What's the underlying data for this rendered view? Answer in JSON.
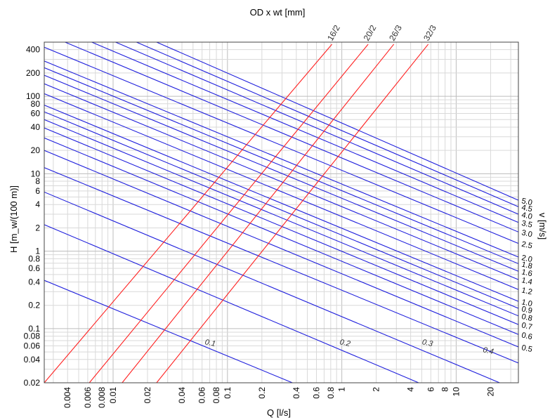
{
  "chart_data": {
    "type": "line",
    "title": "OD x wt [mm]",
    "xlabel": "Q [l/s]",
    "ylabel": "H [m_w/(100 m)]",
    "y2label": "v [m/s]",
    "xscale": "log",
    "yscale": "log",
    "xlim": [
      0.0025,
      35
    ],
    "ylim": [
      0.02,
      500
    ],
    "grid": true,
    "x_ticks": [
      {
        "v": 0.004,
        "t": "0.004"
      },
      {
        "v": 0.006,
        "t": "0.006"
      },
      {
        "v": 0.008,
        "t": "0.008"
      },
      {
        "v": 0.01,
        "t": "0.01"
      },
      {
        "v": 0.02,
        "t": "0.02"
      },
      {
        "v": 0.04,
        "t": "0.04"
      },
      {
        "v": 0.06,
        "t": "0.06"
      },
      {
        "v": 0.08,
        "t": "0.08"
      },
      {
        "v": 0.1,
        "t": "0.1"
      },
      {
        "v": 0.2,
        "t": "0.2"
      },
      {
        "v": 0.4,
        "t": "0.4"
      },
      {
        "v": 0.6,
        "t": "0.6"
      },
      {
        "v": 0.8,
        "t": "0.8"
      },
      {
        "v": 1,
        "t": "1"
      },
      {
        "v": 2,
        "t": "2"
      },
      {
        "v": 4,
        "t": "4"
      },
      {
        "v": 6,
        "t": "6"
      },
      {
        "v": 8,
        "t": "8"
      },
      {
        "v": 10,
        "t": "10"
      },
      {
        "v": 20,
        "t": "20"
      }
    ],
    "y_ticks": [
      {
        "v": 0.02,
        "t": "0.02"
      },
      {
        "v": 0.04,
        "t": "0.04"
      },
      {
        "v": 0.06,
        "t": "0.06"
      },
      {
        "v": 0.08,
        "t": "0.08"
      },
      {
        "v": 0.1,
        "t": "0.1"
      },
      {
        "v": 0.2,
        "t": "0.2"
      },
      {
        "v": 0.4,
        "t": "0.4"
      },
      {
        "v": 0.6,
        "t": "0.6"
      },
      {
        "v": 0.8,
        "t": "0.8"
      },
      {
        "v": 1,
        "t": "1"
      },
      {
        "v": 2,
        "t": "2"
      },
      {
        "v": 4,
        "t": "4"
      },
      {
        "v": 6,
        "t": "6"
      },
      {
        "v": 8,
        "t": "8"
      },
      {
        "v": 10,
        "t": "10"
      },
      {
        "v": 20,
        "t": "20"
      },
      {
        "v": 40,
        "t": "40"
      },
      {
        "v": 60,
        "t": "60"
      },
      {
        "v": 80,
        "t": "80"
      },
      {
        "v": 100,
        "t": "100"
      },
      {
        "v": 200,
        "t": "200"
      },
      {
        "v": 400,
        "t": "400"
      }
    ],
    "pipe_series": [
      {
        "name": "16/2",
        "color": "#ff2020",
        "points": [
          [
            0.0025,
            0.02
          ],
          [
            0.82,
            470
          ]
        ]
      },
      {
        "name": "20/2",
        "color": "#ff2020",
        "points": [
          [
            0.0062,
            0.02
          ],
          [
            1.7,
            470
          ]
        ]
      },
      {
        "name": "26/3",
        "color": "#ff2020",
        "points": [
          [
            0.012,
            0.02
          ],
          [
            2.85,
            470
          ]
        ]
      },
      {
        "name": "32/3",
        "color": "#ff2020",
        "points": [
          [
            0.024,
            0.02
          ],
          [
            5.7,
            470
          ]
        ]
      }
    ],
    "velocity_series": [
      {
        "name": "0.1",
        "color": "#2020dd",
        "label_side": "inner",
        "points": [
          [
            0.0025,
            0.42
          ],
          [
            0.37,
            0.02
          ]
        ]
      },
      {
        "name": "0.2",
        "color": "#2020dd",
        "label_side": "inner",
        "points": [
          [
            0.0025,
            2.2
          ],
          [
            4.7,
            0.02
          ]
        ]
      },
      {
        "name": "0.3",
        "color": "#2020dd",
        "label_side": "inner",
        "points": [
          [
            0.0025,
            5.8
          ],
          [
            24,
            0.02
          ]
        ]
      },
      {
        "name": "0.4",
        "color": "#2020dd",
        "label_side": "inner",
        "points": [
          [
            0.0025,
            12
          ],
          [
            35,
            0.036
          ]
        ]
      },
      {
        "name": "0.5",
        "color": "#2020dd",
        "label_side": "right",
        "points": [
          [
            0.0025,
            20
          ],
          [
            35,
            0.058
          ]
        ]
      },
      {
        "name": "0.6",
        "color": "#2020dd",
        "label_side": "right",
        "points": [
          [
            0.0025,
            29
          ],
          [
            35,
            0.084
          ]
        ]
      },
      {
        "name": "0.7",
        "color": "#2020dd",
        "label_side": "right",
        "points": [
          [
            0.0025,
            39
          ],
          [
            35,
            0.113
          ]
        ]
      },
      {
        "name": "0.8",
        "color": "#2020dd",
        "label_side": "right",
        "points": [
          [
            0.0025,
            50
          ],
          [
            35,
            0.146
          ]
        ]
      },
      {
        "name": "0.9",
        "color": "#2020dd",
        "label_side": "right",
        "points": [
          [
            0.0025,
            63
          ],
          [
            35,
            0.183
          ]
        ]
      },
      {
        "name": "1.0",
        "color": "#2020dd",
        "label_side": "right",
        "points": [
          [
            0.0025,
            77
          ],
          [
            35,
            0.225
          ]
        ]
      },
      {
        "name": "1.2",
        "color": "#2020dd",
        "label_side": "right",
        "points": [
          [
            0.0025,
            108
          ],
          [
            35,
            0.32
          ]
        ]
      },
      {
        "name": "1.4",
        "color": "#2020dd",
        "label_side": "right",
        "points": [
          [
            0.0025,
            145
          ],
          [
            35,
            0.43
          ]
        ]
      },
      {
        "name": "1.6",
        "color": "#2020dd",
        "label_side": "right",
        "points": [
          [
            0.0025,
            187
          ],
          [
            35,
            0.55
          ]
        ]
      },
      {
        "name": "1.8",
        "color": "#2020dd",
        "label_side": "right",
        "points": [
          [
            0.0025,
            234
          ],
          [
            35,
            0.69
          ]
        ]
      },
      {
        "name": "2.0",
        "color": "#2020dd",
        "label_side": "right",
        "points": [
          [
            0.0025,
            285
          ],
          [
            35,
            0.84
          ]
        ]
      },
      {
        "name": "2.5",
        "color": "#2020dd",
        "label_side": "right",
        "points": [
          [
            0.0025,
            430
          ],
          [
            35,
            1.26
          ]
        ]
      },
      {
        "name": "3.0",
        "color": "#2020dd",
        "label_side": "right",
        "points": [
          [
            0.0038,
            500
          ],
          [
            35,
            1.77
          ]
        ]
      },
      {
        "name": "3.5",
        "color": "#2020dd",
        "label_side": "right",
        "points": [
          [
            0.0065,
            500
          ],
          [
            35,
            2.35
          ]
        ]
      },
      {
        "name": "4.0",
        "color": "#2020dd",
        "label_side": "right",
        "points": [
          [
            0.0105,
            500
          ],
          [
            35,
            3.0
          ]
        ]
      },
      {
        "name": "4.5",
        "color": "#2020dd",
        "label_side": "right",
        "points": [
          [
            0.016,
            500
          ],
          [
            35,
            3.75
          ]
        ]
      },
      {
        "name": "5.0",
        "color": "#2020dd",
        "label_side": "right",
        "points": [
          [
            0.024,
            500
          ],
          [
            35,
            4.55
          ]
        ]
      }
    ],
    "inner_label_positions": [
      {
        "name": "0.1",
        "x": 0.063,
        "y": 0.063
      },
      {
        "name": "0.2",
        "x": 0.95,
        "y": 0.063
      },
      {
        "name": "0.3",
        "x": 5.0,
        "y": 0.063
      },
      {
        "name": "0.4",
        "x": 17,
        "y": 0.05
      }
    ]
  }
}
